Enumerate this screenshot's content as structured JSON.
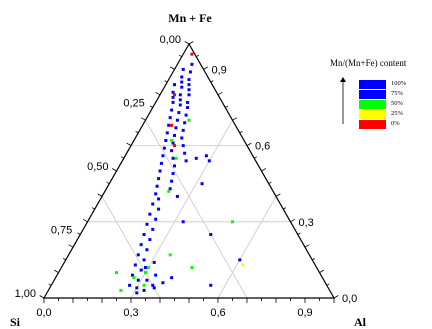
{
  "chart_data": {
    "type": "scatter",
    "subtype": "ternary",
    "vertices": {
      "top": "Mn + Fe",
      "left": "Si",
      "right": "Al"
    },
    "tick_values": [
      0.0,
      0.3,
      0.6,
      0.9
    ],
    "tick_labels": {
      "bottom": [
        "0,0",
        "0,3",
        "0,6",
        "0,9"
      ],
      "right": [
        "0,0",
        "0,3",
        "0,6",
        "0,9"
      ],
      "left": [
        "0,00",
        "0,25",
        "0,50",
        "0,75",
        "1,00"
      ]
    },
    "grid": true,
    "legend": {
      "title": "Mn/(Mn+Fe) content",
      "placement": "top-right",
      "entries": [
        {
          "label": "100%",
          "color": "#0000ff"
        },
        {
          "label": "75%",
          "color": "#0000ff"
        },
        {
          "label": "50%",
          "color": "#00ff00"
        },
        {
          "label": "25%",
          "color": "#ffff00"
        },
        {
          "label": "0%",
          "color": "#ff0000"
        }
      ]
    },
    "series": [
      {
        "color": "#0000ff",
        "points": [
          {
            "al": 0.05,
            "mnfe": 0.92
          },
          {
            "al": 0.03,
            "mnfe": 0.9
          },
          {
            "al": 0.06,
            "mnfe": 0.89
          },
          {
            "al": 0.04,
            "mnfe": 0.87
          },
          {
            "al": 0.07,
            "mnfe": 0.86
          },
          {
            "al": 0.05,
            "mnfe": 0.85
          },
          {
            "al": 0.08,
            "mnfe": 0.84
          },
          {
            "al": 0.03,
            "mnfe": 0.84
          },
          {
            "al": 0.06,
            "mnfe": 0.83
          },
          {
            "al": 0.09,
            "mnfe": 0.82
          },
          {
            "al": 0.04,
            "mnfe": 0.81
          },
          {
            "al": 0.07,
            "mnfe": 0.8
          },
          {
            "al": 0.1,
            "mnfe": 0.8
          },
          {
            "al": 0.05,
            "mnfe": 0.79
          },
          {
            "al": 0.08,
            "mnfe": 0.78
          },
          {
            "al": 0.11,
            "mnfe": 0.77
          },
          {
            "al": 0.06,
            "mnfe": 0.77
          },
          {
            "al": 0.09,
            "mnfe": 0.76
          },
          {
            "al": 0.12,
            "mnfe": 0.75
          },
          {
            "al": 0.07,
            "mnfe": 0.74
          },
          {
            "al": 0.1,
            "mnfe": 0.73
          },
          {
            "al": 0.13,
            "mnfe": 0.72
          },
          {
            "al": 0.08,
            "mnfe": 0.71
          },
          {
            "al": 0.11,
            "mnfe": 0.7
          },
          {
            "al": 0.14,
            "mnfe": 0.69
          },
          {
            "al": 0.09,
            "mnfe": 0.68
          },
          {
            "al": 0.12,
            "mnfe": 0.67
          },
          {
            "al": 0.15,
            "mnfe": 0.66
          },
          {
            "al": 0.1,
            "mnfe": 0.65
          },
          {
            "al": 0.13,
            "mnfe": 0.64
          },
          {
            "al": 0.16,
            "mnfe": 0.63
          },
          {
            "al": 0.11,
            "mnfe": 0.62
          },
          {
            "al": 0.14,
            "mnfe": 0.61
          },
          {
            "al": 0.18,
            "mnfe": 0.6
          },
          {
            "al": 0.12,
            "mnfe": 0.59
          },
          {
            "al": 0.15,
            "mnfe": 0.58
          },
          {
            "al": 0.2,
            "mnfe": 0.57
          },
          {
            "al": 0.13,
            "mnfe": 0.56
          },
          {
            "al": 0.17,
            "mnfe": 0.55
          },
          {
            "al": 0.22,
            "mnfe": 0.54
          },
          {
            "al": 0.14,
            "mnfe": 0.53
          },
          {
            "al": 0.19,
            "mnfe": 0.52
          },
          {
            "al": 0.25,
            "mnfe": 0.55
          },
          {
            "al": 0.28,
            "mnfe": 0.56
          },
          {
            "al": 0.3,
            "mnfe": 0.54
          },
          {
            "al": 0.15,
            "mnfe": 0.5
          },
          {
            "al": 0.2,
            "mnfe": 0.49
          },
          {
            "al": 0.16,
            "mnfe": 0.47
          },
          {
            "al": 0.21,
            "mnfe": 0.46
          },
          {
            "al": 0.17,
            "mnfe": 0.44
          },
          {
            "al": 0.22,
            "mnfe": 0.43
          },
          {
            "al": 0.18,
            "mnfe": 0.41
          },
          {
            "al": 0.2,
            "mnfe": 0.39
          },
          {
            "al": 0.19,
            "mnfe": 0.37
          },
          {
            "al": 0.22,
            "mnfe": 0.35
          },
          {
            "al": 0.2,
            "mnfe": 0.33
          },
          {
            "al": 0.23,
            "mnfe": 0.31
          },
          {
            "al": 0.21,
            "mnfe": 0.29
          },
          {
            "al": 0.24,
            "mnfe": 0.27
          },
          {
            "al": 0.22,
            "mnfe": 0.25
          },
          {
            "al": 0.25,
            "mnfe": 0.23
          },
          {
            "al": 0.23,
            "mnfe": 0.21
          },
          {
            "al": 0.26,
            "mnfe": 0.19
          },
          {
            "al": 0.24,
            "mnfe": 0.17
          },
          {
            "al": 0.27,
            "mnfe": 0.15
          },
          {
            "al": 0.25,
            "mnfe": 0.13
          },
          {
            "al": 0.28,
            "mnfe": 0.11
          },
          {
            "al": 0.26,
            "mnfe": 0.09
          },
          {
            "al": 0.29,
            "mnfe": 0.07
          },
          {
            "al": 0.27,
            "mnfe": 0.05
          },
          {
            "al": 0.3,
            "mnfe": 0.04
          },
          {
            "al": 0.31,
            "mnfe": 0.02
          },
          {
            "al": 0.33,
            "mnfe": 0.03
          },
          {
            "al": 0.35,
            "mnfe": 0.05
          },
          {
            "al": 0.32,
            "mnfe": 0.07
          },
          {
            "al": 0.34,
            "mnfe": 0.09
          },
          {
            "al": 0.29,
            "mnfe": 0.12
          },
          {
            "al": 0.31,
            "mnfe": 0.14
          },
          {
            "al": 0.36,
            "mnfe": 0.04
          },
          {
            "al": 0.38,
            "mnfe": 0.06
          },
          {
            "al": 0.4,
            "mnfe": 0.08
          },
          {
            "al": 0.55,
            "mnfe": 0.05
          },
          {
            "al": 0.6,
            "mnfe": 0.15
          },
          {
            "al": 0.45,
            "mnfe": 0.25
          },
          {
            "al": 0.33,
            "mnfe": 0.3
          },
          {
            "al": 0.26,
            "mnfe": 0.4
          },
          {
            "al": 0.32,
            "mnfe": 0.45
          }
        ]
      },
      {
        "color": "#00ff00",
        "points": [
          {
            "al": 0.15,
            "mnfe": 0.7
          },
          {
            "al": 0.13,
            "mnfe": 0.62
          },
          {
            "al": 0.18,
            "mnfe": 0.55
          },
          {
            "al": 0.22,
            "mnfe": 0.42
          },
          {
            "al": 0.3,
            "mnfe": 0.12
          },
          {
            "al": 0.27,
            "mnfe": 0.08
          },
          {
            "al": 0.32,
            "mnfe": 0.05
          },
          {
            "al": 0.25,
            "mnfe": 0.03
          },
          {
            "al": 0.3,
            "mnfe": 0.1
          },
          {
            "al": 0.45,
            "mnfe": 0.12
          },
          {
            "al": 0.5,
            "mnfe": 0.3
          },
          {
            "al": 0.2,
            "mnfe": 0.1
          },
          {
            "al": 0.35,
            "mnfe": 0.17
          }
        ]
      },
      {
        "color": "#ffff00",
        "points": [
          {
            "al": 0.62,
            "mnfe": 0.13
          }
        ]
      },
      {
        "color": "#ff0000",
        "points": [
          {
            "al": 0.03,
            "mnfe": 0.96
          },
          {
            "al": 0.05,
            "mnfe": 0.8
          },
          {
            "al": 0.1,
            "mnfe": 0.68
          },
          {
            "al": 0.15,
            "mnfe": 0.6
          }
        ]
      }
    ]
  }
}
